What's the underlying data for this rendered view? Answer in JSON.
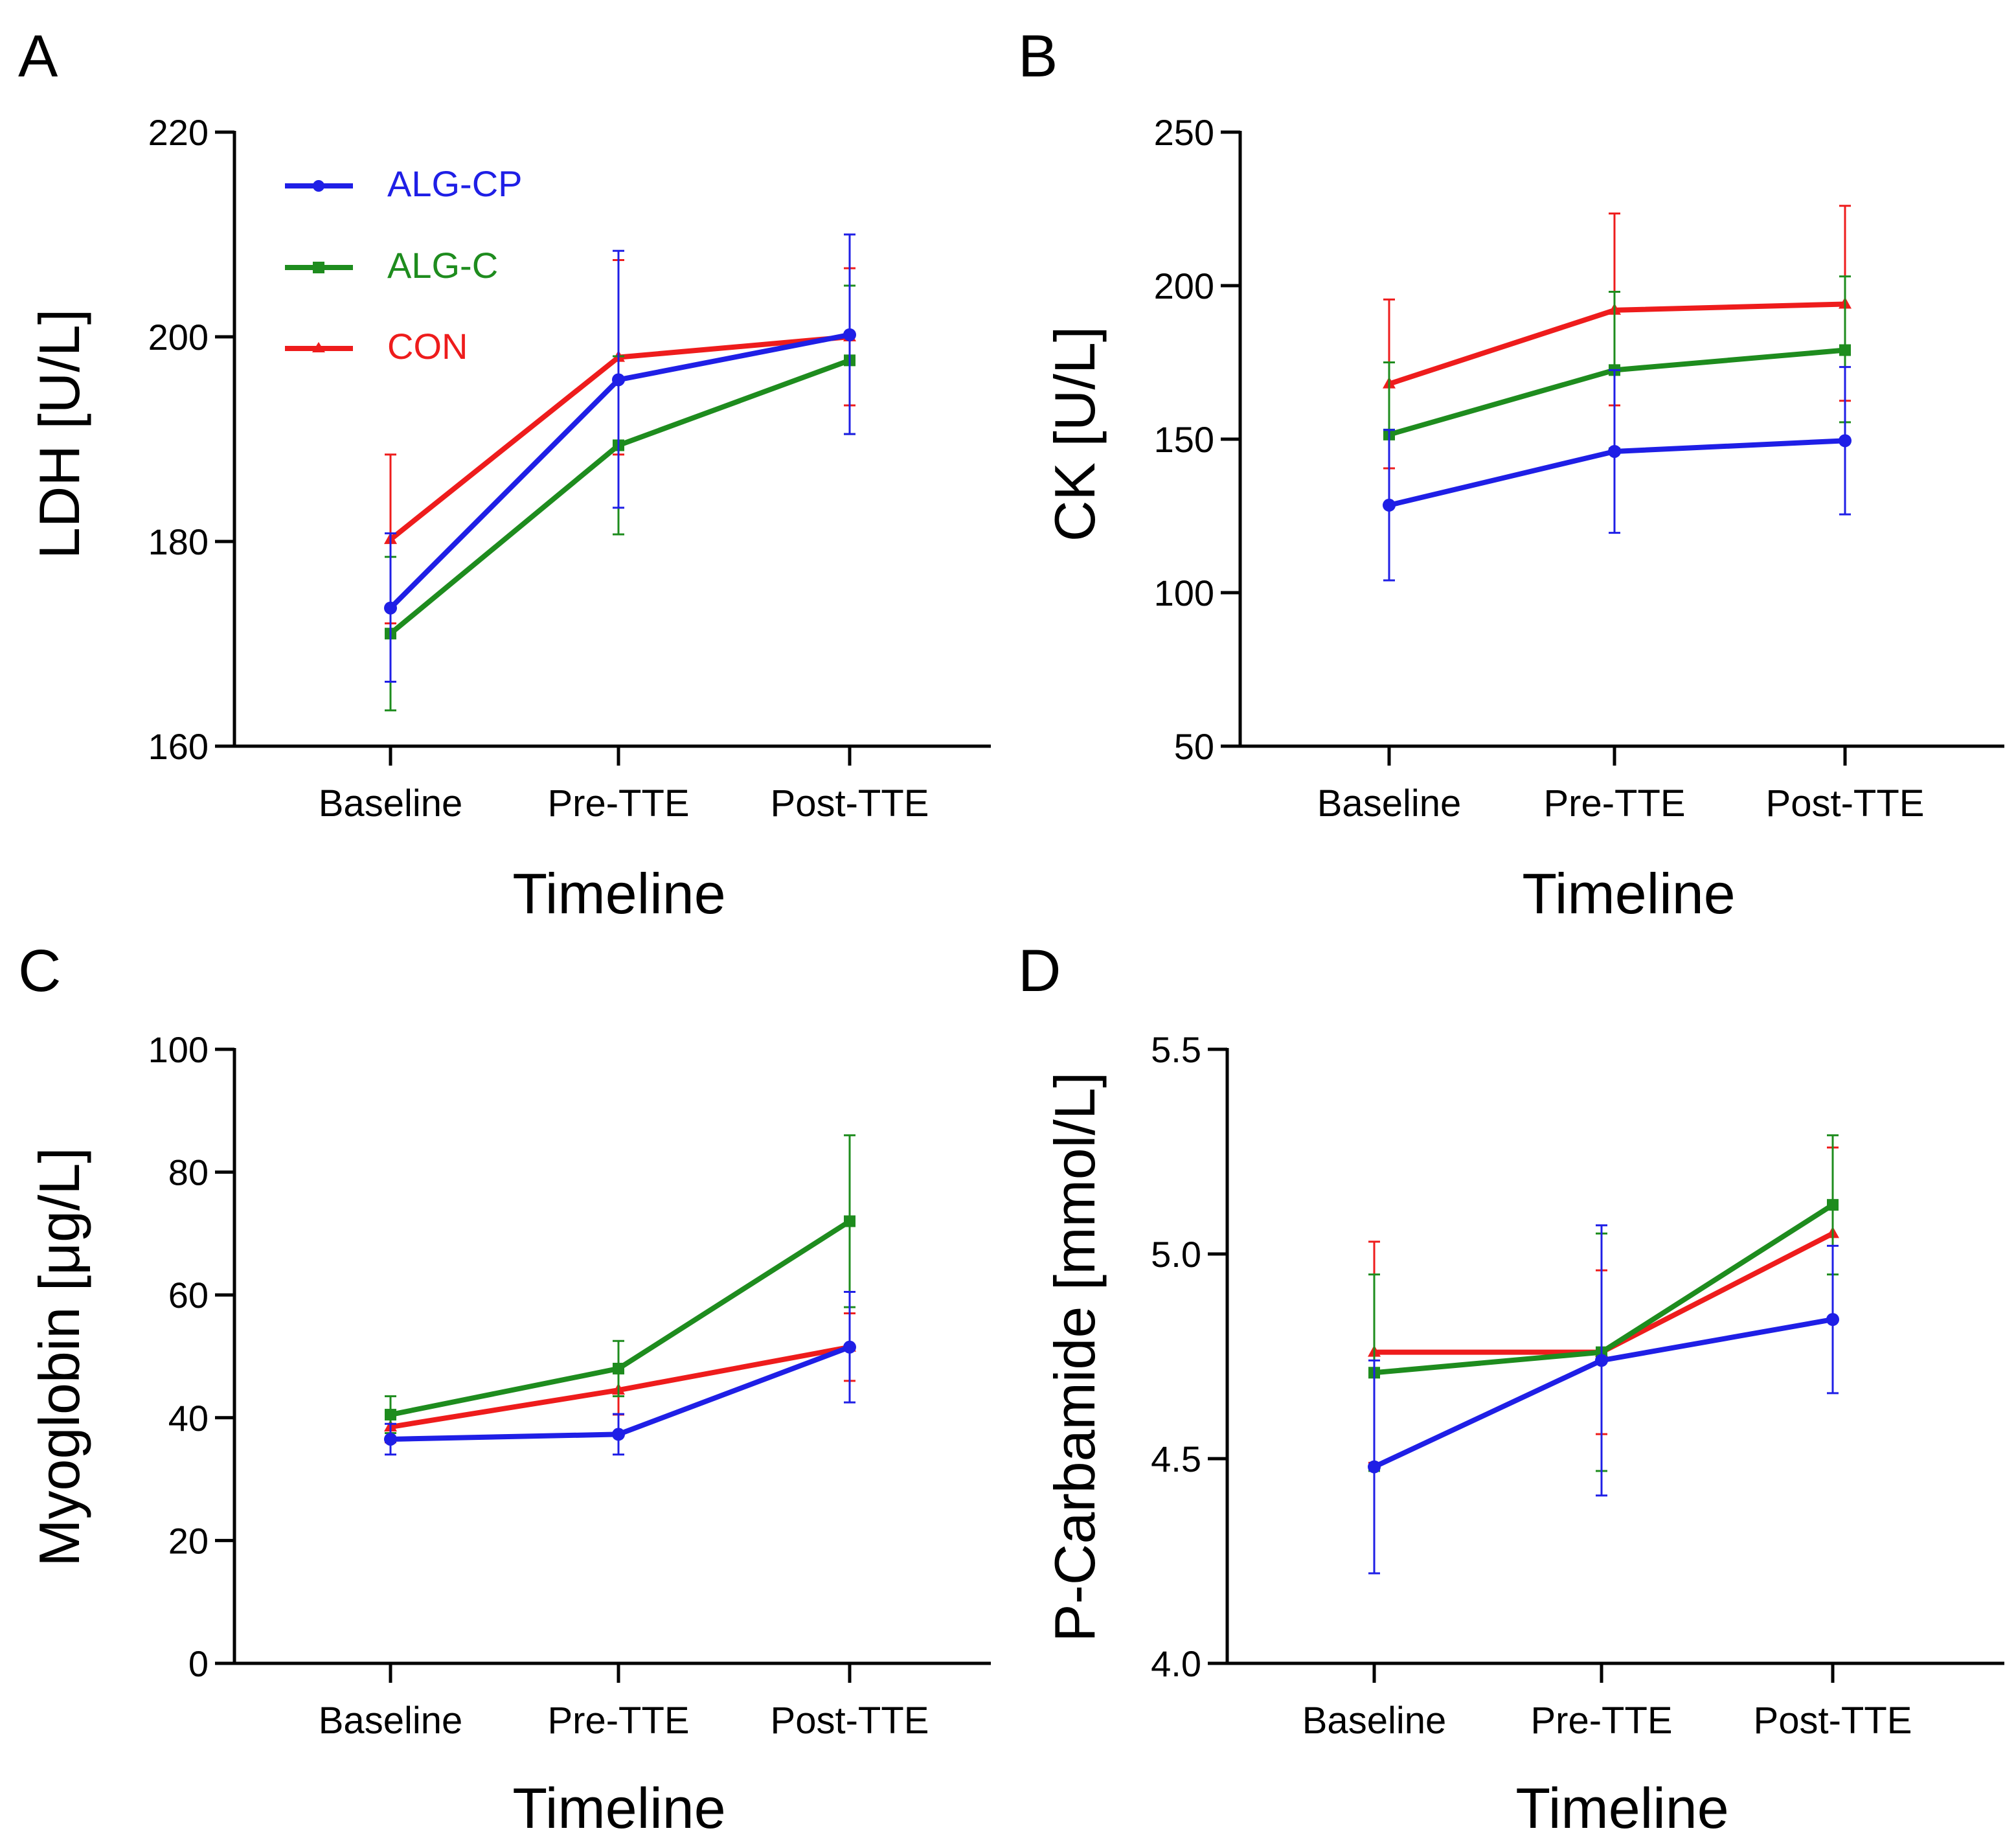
{
  "chart_data": [
    {
      "panel": "A",
      "type": "line",
      "ylabel": "LDH [U/L]",
      "xlabel": "Timeline",
      "categories": [
        "Baseline",
        "Pre-TTE",
        "Post-TTE"
      ],
      "ylim": [
        160,
        220
      ],
      "yticks": [
        160,
        180,
        200,
        220
      ],
      "ytick_labels": [
        "160",
        "180",
        "200",
        "220"
      ],
      "legend": [
        "ALG-CP",
        "ALG-C",
        "CON"
      ],
      "series": [
        {
          "name": "ALG-CP",
          "color": "#1f1fe6",
          "values": [
            173.5,
            195.8,
            200.2
          ],
          "err_low": [
            166.3,
            183.3,
            190.5
          ],
          "err_high": [
            180.8,
            208.4,
            210.0
          ]
        },
        {
          "name": "ALG-C",
          "color": "#1e8c1e",
          "values": [
            171.0,
            189.4,
            197.7
          ],
          "err_low": [
            163.5,
            180.7,
            190.5
          ],
          "err_high": [
            178.5,
            198.1,
            205.0
          ]
        },
        {
          "name": "CON",
          "color": "#ee1c1c",
          "values": [
            180.2,
            198.0,
            200.0
          ],
          "err_low": [
            172.0,
            188.5,
            193.3
          ],
          "err_high": [
            188.5,
            207.5,
            206.7
          ]
        }
      ]
    },
    {
      "panel": "B",
      "type": "line",
      "ylabel": "CK  [U/L]",
      "xlabel": "Timeline",
      "categories": [
        "Baseline",
        "Pre-TTE",
        "Post-TTE"
      ],
      "ylim": [
        50,
        250
      ],
      "yticks": [
        50,
        100,
        150,
        200,
        250
      ],
      "ytick_labels": [
        "50",
        "100",
        "150",
        "200",
        "250"
      ],
      "series": [
        {
          "name": "ALG-CP",
          "color": "#1f1fe6",
          "values": [
            128.5,
            146.0,
            149.5
          ],
          "err_low": [
            104.0,
            119.5,
            125.5
          ],
          "err_high": [
            153.0,
            172.5,
            173.5
          ]
        },
        {
          "name": "ALG-C",
          "color": "#1e8c1e",
          "values": [
            151.5,
            172.5,
            179.0
          ],
          "err_low": [
            128.0,
            147.0,
            155.5
          ],
          "err_high": [
            175.0,
            198.0,
            203.0
          ]
        },
        {
          "name": "CON",
          "color": "#ee1c1c",
          "values": [
            168.0,
            192.0,
            194.0
          ],
          "err_low": [
            140.5,
            161.0,
            162.5
          ],
          "err_high": [
            195.5,
            223.5,
            226.0
          ]
        }
      ]
    },
    {
      "panel": "C",
      "type": "line",
      "ylabel": "Myoglobin [μg/L]",
      "xlabel": "Timeline",
      "categories": [
        "Baseline",
        "Pre-TTE",
        "Post-TTE"
      ],
      "ylim": [
        0,
        100
      ],
      "yticks": [
        0,
        20,
        40,
        60,
        80,
        100
      ],
      "ytick_labels": [
        "0",
        "20",
        "40",
        "60",
        "80",
        "100"
      ],
      "series": [
        {
          "name": "ALG-CP",
          "color": "#1f1fe6",
          "values": [
            36.5,
            37.3,
            51.5
          ],
          "err_low": [
            34.0,
            34.0,
            42.5
          ],
          "err_high": [
            39.0,
            40.6,
            60.5
          ]
        },
        {
          "name": "ALG-C",
          "color": "#1e8c1e",
          "values": [
            40.5,
            48.0,
            72.0
          ],
          "err_low": [
            37.5,
            43.5,
            58.0
          ],
          "err_high": [
            43.5,
            52.5,
            86.0
          ]
        },
        {
          "name": "CON",
          "color": "#ee1c1c",
          "values": [
            38.5,
            44.5,
            51.5
          ],
          "err_low": [
            36.0,
            40.5,
            46.0
          ],
          "err_high": [
            41.0,
            48.5,
            57.0
          ]
        }
      ]
    },
    {
      "panel": "D",
      "type": "line",
      "ylabel": "P-Carbamide  [mmol/L]",
      "xlabel": "Timeline",
      "categories": [
        "Baseline",
        "Pre-TTE",
        "Post-TTE"
      ],
      "ylim": [
        4.0,
        5.5
      ],
      "yticks": [
        4.0,
        4.5,
        5.0,
        5.5
      ],
      "ytick_labels": [
        "4.0",
        "4.5",
        "5.0",
        "5.5"
      ],
      "series": [
        {
          "name": "ALG-CP",
          "color": "#1f1fe6",
          "values": [
            4.48,
            4.74,
            4.84
          ],
          "err_low": [
            4.22,
            4.41,
            4.66
          ],
          "err_high": [
            4.74,
            5.07,
            5.02
          ]
        },
        {
          "name": "ALG-C",
          "color": "#1e8c1e",
          "values": [
            4.71,
            4.76,
            5.12
          ],
          "err_low": [
            4.47,
            4.47,
            4.95
          ],
          "err_high": [
            4.95,
            5.05,
            5.29
          ]
        },
        {
          "name": "CON",
          "color": "#ee1c1c",
          "values": [
            4.76,
            4.76,
            5.05
          ],
          "err_low": [
            4.49,
            4.56,
            4.84
          ],
          "err_high": [
            5.03,
            4.96,
            5.26
          ]
        }
      ]
    }
  ]
}
